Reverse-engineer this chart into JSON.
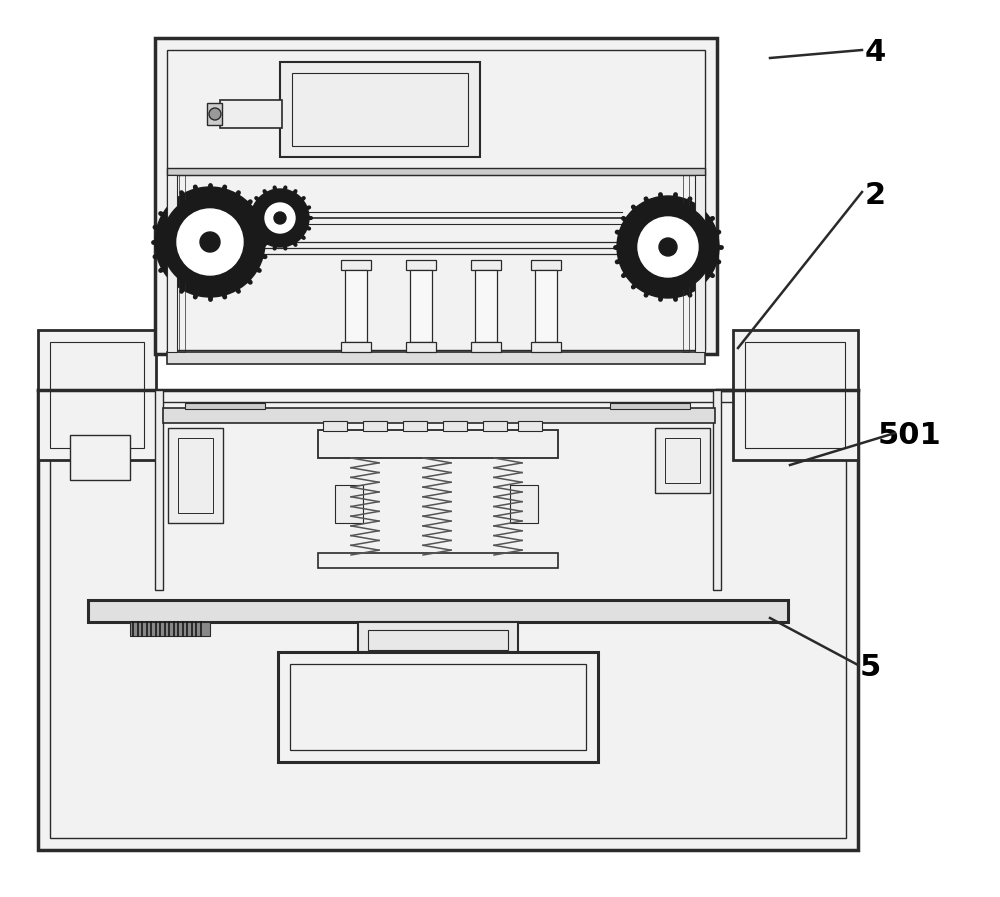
{
  "bg_color": "#ffffff",
  "line_color": "#2a2a2a",
  "dark_color": "#1a1a1a",
  "gray_color": "#555555",
  "med_gray": "#aaaaaa",
  "light_gray": "#dddddd",
  "fill_light": "#f2f2f2",
  "label_4": "4",
  "label_2": "2",
  "label_501": "501",
  "label_5": "5",
  "figsize": [
    10.0,
    8.97
  ],
  "dpi": 100
}
